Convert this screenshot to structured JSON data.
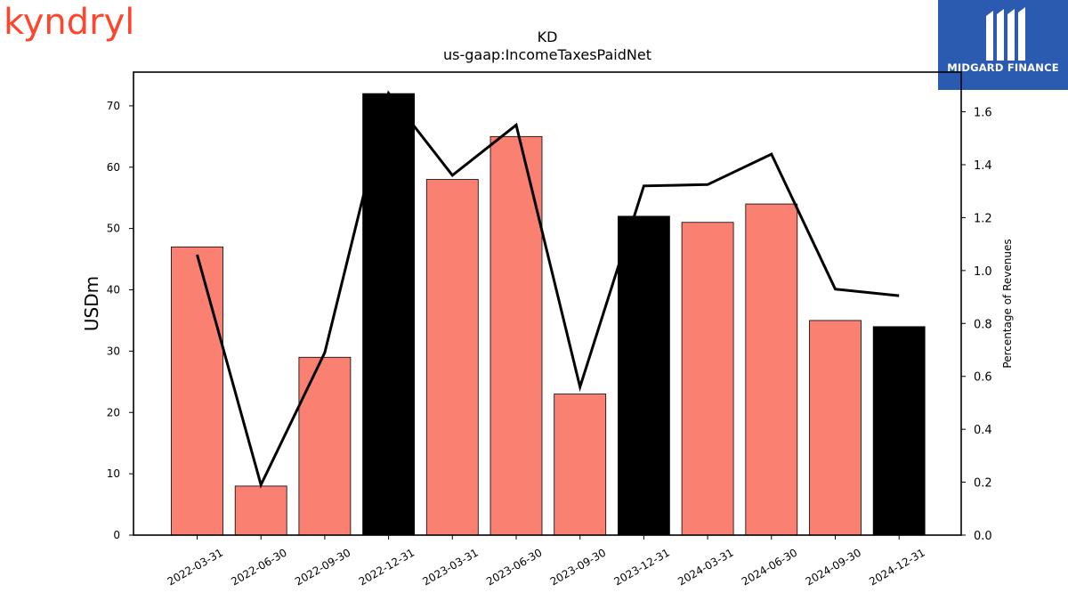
{
  "header": {
    "ticker": "KD",
    "concept": "us-gaap:IncomeTaxesPaidNet"
  },
  "logos": {
    "left_text": "kyndryl",
    "left_color": "#ff462d",
    "right_text": "MIDGARD FINANCE",
    "right_bg": "#2b5bb0"
  },
  "chart_data": {
    "type": "bar",
    "title": "KD",
    "subtitle": "us-gaap:IncomeTaxesPaidNet",
    "ylabel": "USDm",
    "y2label": "Percentage of Revenues",
    "categories": [
      "2022-03-31",
      "2022-06-30",
      "2022-09-30",
      "2022-12-31",
      "2023-03-31",
      "2023-06-30",
      "2023-09-30",
      "2023-12-31",
      "2024-03-31",
      "2024-06-30",
      "2024-09-30",
      "2024-12-31"
    ],
    "series": [
      {
        "type": "bar",
        "values": [
          47,
          8,
          29,
          72,
          58,
          65,
          23,
          52,
          51,
          54,
          35,
          34
        ],
        "colors": [
          "#fa8072",
          "#fa8072",
          "#fa8072",
          "#000000",
          "#fa8072",
          "#fa8072",
          "#fa8072",
          "#000000",
          "#fa8072",
          "#fa8072",
          "#fa8072",
          "#000000"
        ]
      },
      {
        "type": "line",
        "axis": "right",
        "values": [
          1.06,
          0.19,
          0.69,
          1.67,
          1.36,
          1.55,
          0.56,
          1.32,
          1.325,
          1.44,
          0.93,
          0.905
        ],
        "color": "#000000"
      }
    ],
    "ylim": [
      0,
      75.5
    ],
    "yticks": [
      0,
      10,
      20,
      30,
      40,
      50,
      60,
      70
    ],
    "y2lim": [
      0,
      1.75
    ],
    "y2ticks": [
      "0.0",
      "0.2",
      "0.4",
      "0.6",
      "0.8",
      "1.0",
      "1.2",
      "1.4",
      "1.6"
    ],
    "grid": false
  }
}
